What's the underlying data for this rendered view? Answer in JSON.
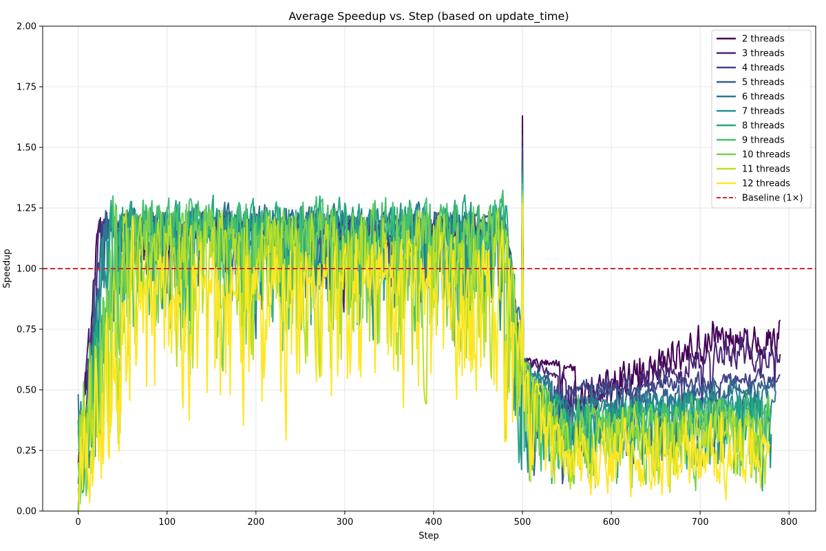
{
  "chart_data": {
    "type": "line",
    "title": "Average Speedup vs. Step (based on update_time)",
    "xlabel": "Step",
    "ylabel": "Speedup",
    "xlim": [
      -40,
      830
    ],
    "ylim": [
      0.0,
      2.0
    ],
    "xticks": [
      0,
      100,
      200,
      300,
      400,
      500,
      600,
      700,
      800
    ],
    "yticks": [
      0.0,
      0.25,
      0.5,
      0.75,
      1.0,
      1.25,
      1.5,
      1.75,
      2.0
    ],
    "xtick_labels": [
      "0",
      "100",
      "200",
      "300",
      "400",
      "500",
      "600",
      "700",
      "800"
    ],
    "ytick_labels": [
      "0.00",
      "0.25",
      "0.50",
      "0.75",
      "1.00",
      "1.25",
      "1.50",
      "1.75",
      "2.00"
    ],
    "grid": true,
    "legend_position": "top-right",
    "baseline": {
      "name": "Baseline (1×)",
      "y": 1.0,
      "color": "#d62728",
      "style": "dashed"
    },
    "series": [
      {
        "name": "2 threads",
        "threads": 2,
        "color": "#440154",
        "step_max": 790,
        "rise_at": 20,
        "plateau": 1.17,
        "late_level": 0.7,
        "peak_500": 1.63,
        "late_noise": 0.1
      },
      {
        "name": "3 threads",
        "threads": 3,
        "color": "#482475",
        "step_max": 790,
        "rise_at": 22,
        "plateau": 1.18,
        "late_level": 0.63,
        "peak_500": 1.55,
        "late_noise": 0.07
      },
      {
        "name": "4 threads",
        "threads": 4,
        "color": "#414487",
        "step_max": 790,
        "rise_at": 25,
        "plateau": 1.18,
        "late_level": 0.56,
        "peak_500": 1.5,
        "late_noise": 0.05
      },
      {
        "name": "5 threads",
        "threads": 5,
        "color": "#355f8d",
        "step_max": 785,
        "rise_at": 28,
        "plateau": 1.19,
        "late_level": 0.52,
        "peak_500": 1.45,
        "late_noise": 0.05
      },
      {
        "name": "6 threads",
        "threads": 6,
        "color": "#2a788e",
        "step_max": 785,
        "rise_at": 30,
        "plateau": 1.19,
        "late_level": 0.49,
        "peak_500": 1.42,
        "late_noise": 0.05
      },
      {
        "name": "7 threads",
        "threads": 7,
        "color": "#21918c",
        "step_max": 780,
        "rise_at": 33,
        "plateau": 1.19,
        "late_level": 0.46,
        "peak_500": 1.4,
        "late_noise": 0.06
      },
      {
        "name": "8 threads",
        "threads": 8,
        "color": "#22a884",
        "step_max": 780,
        "rise_at": 36,
        "plateau": 1.2,
        "late_level": 0.44,
        "peak_500": 1.38,
        "late_noise": 0.07
      },
      {
        "name": "9 threads",
        "threads": 9,
        "color": "#44bf70",
        "step_max": 778,
        "rise_at": 40,
        "plateau": 1.2,
        "late_level": 0.42,
        "peak_500": 1.35,
        "late_noise": 0.08
      },
      {
        "name": "10 threads",
        "threads": 10,
        "color": "#7ad151",
        "step_max": 778,
        "rise_at": 45,
        "plateau": 1.16,
        "late_level": 0.4,
        "peak_500": 1.32,
        "late_noise": 0.1
      },
      {
        "name": "11 threads",
        "threads": 11,
        "color": "#bddf26",
        "step_max": 778,
        "rise_at": 52,
        "plateau": 1.12,
        "late_level": 0.35,
        "peak_500": 1.3,
        "late_noise": 0.15
      },
      {
        "name": "12 threads",
        "threads": 12,
        "color": "#fde725",
        "step_max": 778,
        "rise_at": 70,
        "plateau": 1.02,
        "late_level": 0.25,
        "peak_500": 1.27,
        "late_noise": 0.22
      }
    ]
  }
}
